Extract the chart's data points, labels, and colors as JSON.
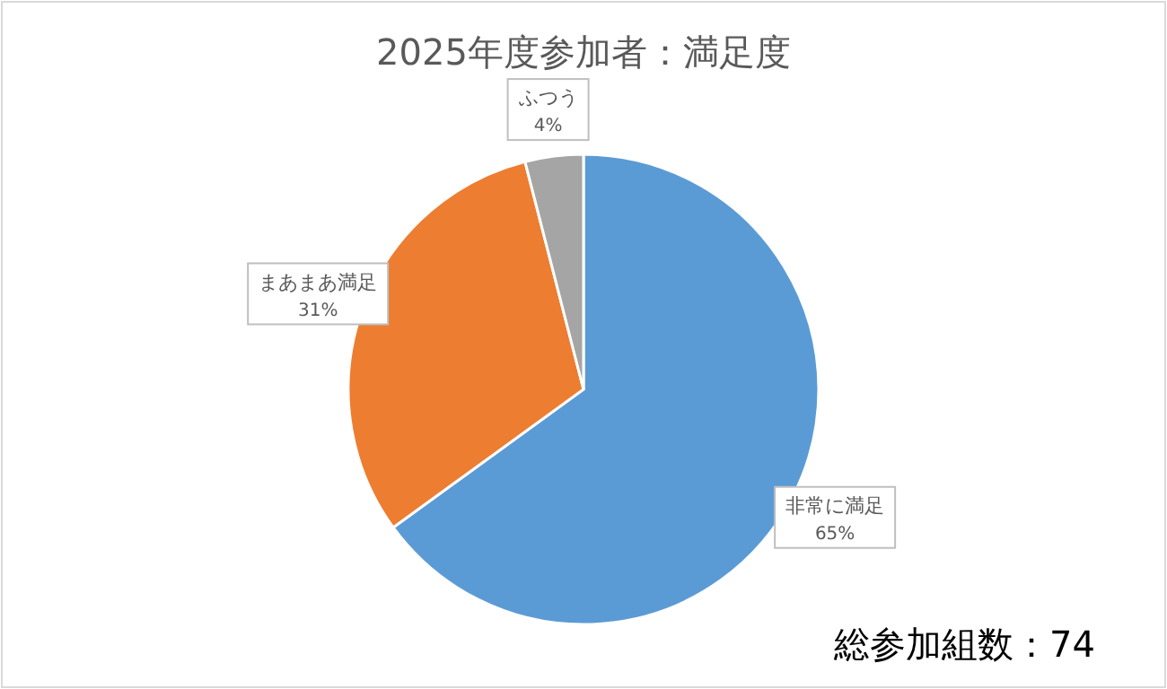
{
  "chart_data": {
    "type": "pie",
    "title": "2025年度参加者：満足度",
    "categories": [
      "非常に満足",
      "まあまあ満足",
      "ふつう"
    ],
    "values": [
      65,
      31,
      4
    ],
    "colors": [
      "#5b9bd5",
      "#ed7d31",
      "#a5a5a5"
    ],
    "value_labels": [
      "65%",
      "31%",
      "4%"
    ],
    "annotations": [
      "総参加組数：74"
    ]
  }
}
